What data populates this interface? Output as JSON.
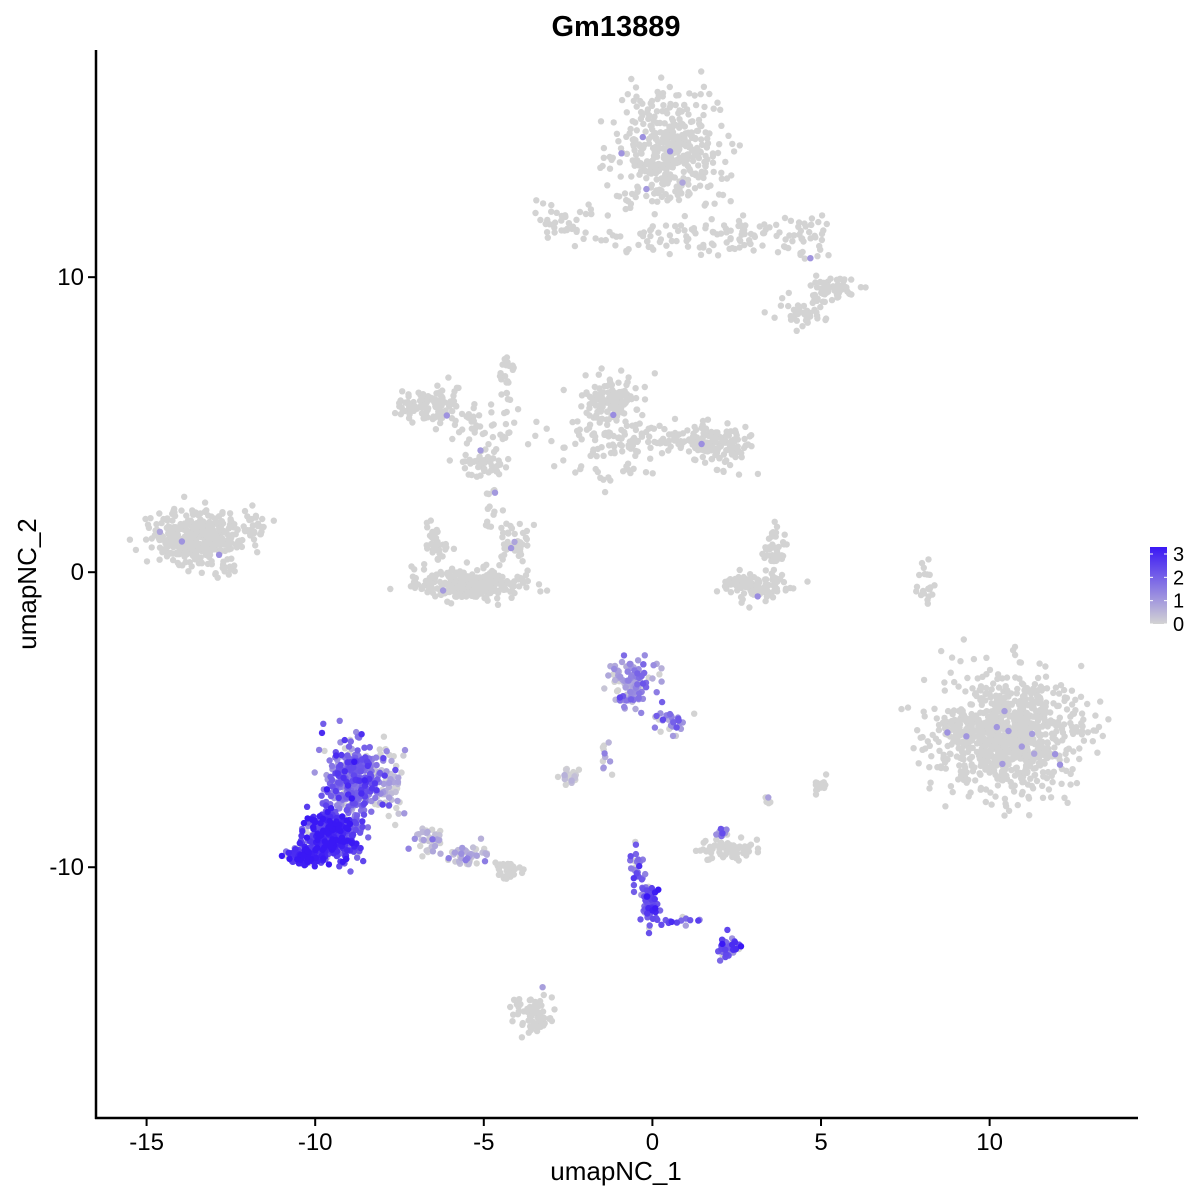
{
  "chart_data": {
    "type": "scatter",
    "title": "Gm13889",
    "xlabel": "umapNC_1",
    "ylabel": "umapNC_2",
    "xlim": [
      -16.5,
      14.4
    ],
    "ylim": [
      -18.5,
      17.7
    ],
    "x_ticks": [
      -15,
      -10,
      -5,
      0,
      5,
      10
    ],
    "x_tick_labels": [
      "-15",
      "-10",
      "-5",
      "0",
      "5",
      "10"
    ],
    "y_ticks": [
      -10,
      0,
      10
    ],
    "y_tick_labels": [
      "-10",
      "0",
      "10"
    ],
    "grid": false,
    "color_scale": {
      "low": "#d3d3d3",
      "high": "#3a18f5",
      "min": 0,
      "max": 3.3,
      "breaks": [
        0,
        1,
        2,
        3
      ],
      "break_labels": [
        "0",
        "1",
        "2",
        "3"
      ],
      "legend_position": "right"
    },
    "clusters": [
      {
        "cx": 0.6,
        "cy": 14.2,
        "sx": 1.0,
        "sy": 1.2,
        "n": 420,
        "level": 0
      },
      {
        "cx": -2.5,
        "cy": 11.8,
        "sx": 0.6,
        "sy": 0.4,
        "n": 40,
        "level": 0
      },
      {
        "cx": 0.0,
        "cy": 11.3,
        "sx": 1.2,
        "sy": 0.3,
        "n": 45,
        "level": 0
      },
      {
        "cx": 2.6,
        "cy": 11.4,
        "sx": 0.9,
        "sy": 0.5,
        "n": 60,
        "level": 0
      },
      {
        "cx": 4.7,
        "cy": 11.3,
        "sx": 0.5,
        "sy": 0.5,
        "n": 35,
        "level": 0
      },
      {
        "cx": 5.3,
        "cy": 9.6,
        "sx": 0.5,
        "sy": 0.3,
        "n": 60,
        "level": 0
      },
      {
        "cx": 4.4,
        "cy": 8.9,
        "sx": 0.5,
        "sy": 0.3,
        "n": 40,
        "level": 0
      },
      {
        "cx": -6.5,
        "cy": 5.6,
        "sx": 0.7,
        "sy": 0.4,
        "n": 120,
        "level": 0
      },
      {
        "cx": -4.9,
        "cy": 4.8,
        "sx": 0.8,
        "sy": 0.6,
        "n": 40,
        "level": 0
      },
      {
        "cx": -4.9,
        "cy": 3.7,
        "sx": 0.5,
        "sy": 0.3,
        "n": 50,
        "level": 0
      },
      {
        "cx": -4.3,
        "cy": 6.5,
        "sx": 0.2,
        "sy": 0.8,
        "n": 25,
        "level": 0
      },
      {
        "cx": -1.2,
        "cy": 5.8,
        "sx": 0.5,
        "sy": 0.5,
        "n": 120,
        "level": 0
      },
      {
        "cx": -1.3,
        "cy": 4.3,
        "sx": 0.8,
        "sy": 0.8,
        "n": 100,
        "level": 0
      },
      {
        "cx": 1.0,
        "cy": 4.5,
        "sx": 1.0,
        "sy": 0.3,
        "n": 80,
        "level": 0
      },
      {
        "cx": 2.0,
        "cy": 4.2,
        "sx": 0.6,
        "sy": 0.5,
        "n": 100,
        "level": 0
      },
      {
        "cx": -13.5,
        "cy": 1.2,
        "sx": 0.8,
        "sy": 0.6,
        "n": 380,
        "level": 0
      },
      {
        "cx": -11.8,
        "cy": 1.5,
        "sx": 0.3,
        "sy": 0.6,
        "n": 25,
        "level": 0
      },
      {
        "cx": -12.6,
        "cy": 0.0,
        "sx": 0.3,
        "sy": 0.2,
        "n": 15,
        "level": 0
      },
      {
        "cx": -5.4,
        "cy": -0.4,
        "sx": 1.0,
        "sy": 0.3,
        "n": 320,
        "level": 0
      },
      {
        "cx": -6.4,
        "cy": 1.0,
        "sx": 0.25,
        "sy": 0.4,
        "n": 40,
        "level": 0
      },
      {
        "cx": -4.1,
        "cy": 1.0,
        "sx": 0.3,
        "sy": 0.5,
        "n": 40,
        "level": 0
      },
      {
        "cx": -4.8,
        "cy": 2.3,
        "sx": 0.2,
        "sy": 0.6,
        "n": 15,
        "level": 0
      },
      {
        "cx": 3.1,
        "cy": -0.5,
        "sx": 0.6,
        "sy": 0.3,
        "n": 120,
        "level": 0
      },
      {
        "cx": 3.6,
        "cy": 0.8,
        "sx": 0.2,
        "sy": 0.4,
        "n": 40,
        "level": 0
      },
      {
        "cx": 10.5,
        "cy": -5.5,
        "sx": 1.3,
        "sy": 1.2,
        "n": 900,
        "level": 0
      },
      {
        "cx": 9.0,
        "cy": -5.2,
        "sx": 0.3,
        "sy": 0.3,
        "n": 25,
        "level": 0
      },
      {
        "cx": -0.6,
        "cy": -3.8,
        "sx": 0.4,
        "sy": 0.5,
        "n": 120,
        "level": 1.0
      },
      {
        "cx": 0.6,
        "cy": -5.0,
        "sx": 0.3,
        "sy": 0.3,
        "n": 30,
        "level": 1.3
      },
      {
        "cx": -8.9,
        "cy": -7.0,
        "sx": 0.5,
        "sy": 0.8,
        "n": 350,
        "level": 1.8
      },
      {
        "cx": -9.5,
        "cy": -8.9,
        "sx": 0.5,
        "sy": 0.5,
        "n": 400,
        "level": 2.7
      },
      {
        "cx": -10.3,
        "cy": -9.6,
        "sx": 0.3,
        "sy": 0.2,
        "n": 120,
        "level": 2.9
      },
      {
        "cx": -7.8,
        "cy": -7.2,
        "sx": 0.3,
        "sy": 0.8,
        "n": 60,
        "level": 0.3
      },
      {
        "cx": -6.6,
        "cy": -9.0,
        "sx": 0.3,
        "sy": 0.3,
        "n": 35,
        "level": 0.3
      },
      {
        "cx": -5.4,
        "cy": -9.6,
        "sx": 0.4,
        "sy": 0.2,
        "n": 50,
        "level": 0.3
      },
      {
        "cx": -4.3,
        "cy": -10.1,
        "sx": 0.3,
        "sy": 0.2,
        "n": 30,
        "level": 0
      },
      {
        "cx": -2.5,
        "cy": -6.9,
        "sx": 0.2,
        "sy": 0.2,
        "n": 25,
        "level": 0.1
      },
      {
        "cx": -1.4,
        "cy": -6.2,
        "sx": 0.2,
        "sy": 0.4,
        "n": 12,
        "level": 0.6
      },
      {
        "cx": -0.1,
        "cy": -11.2,
        "sx": 0.15,
        "sy": 0.5,
        "n": 70,
        "level": 2.0
      },
      {
        "cx": -0.5,
        "cy": -10.0,
        "sx": 0.15,
        "sy": 0.5,
        "n": 25,
        "level": 1.8
      },
      {
        "cx": 1.0,
        "cy": -11.8,
        "sx": 0.5,
        "sy": 0.1,
        "n": 15,
        "level": 1.9
      },
      {
        "cx": 2.3,
        "cy": -12.7,
        "sx": 0.25,
        "sy": 0.2,
        "n": 40,
        "level": 2.2
      },
      {
        "cx": 2.2,
        "cy": -9.4,
        "sx": 0.5,
        "sy": 0.25,
        "n": 70,
        "level": 0
      },
      {
        "cx": 2.1,
        "cy": -8.8,
        "sx": 0.1,
        "sy": 0.1,
        "n": 10,
        "level": 1.7
      },
      {
        "cx": -3.5,
        "cy": -15.0,
        "sx": 0.35,
        "sy": 0.5,
        "n": 70,
        "level": 0
      },
      {
        "cx": 8.1,
        "cy": -0.5,
        "sx": 0.15,
        "sy": 0.5,
        "n": 20,
        "level": 0
      },
      {
        "cx": 5.0,
        "cy": -7.3,
        "sx": 0.15,
        "sy": 0.25,
        "n": 15,
        "level": 0
      },
      {
        "cx": 3.4,
        "cy": -7.7,
        "sx": 0.1,
        "sy": 0.1,
        "n": 5,
        "level": 0
      }
    ]
  }
}
